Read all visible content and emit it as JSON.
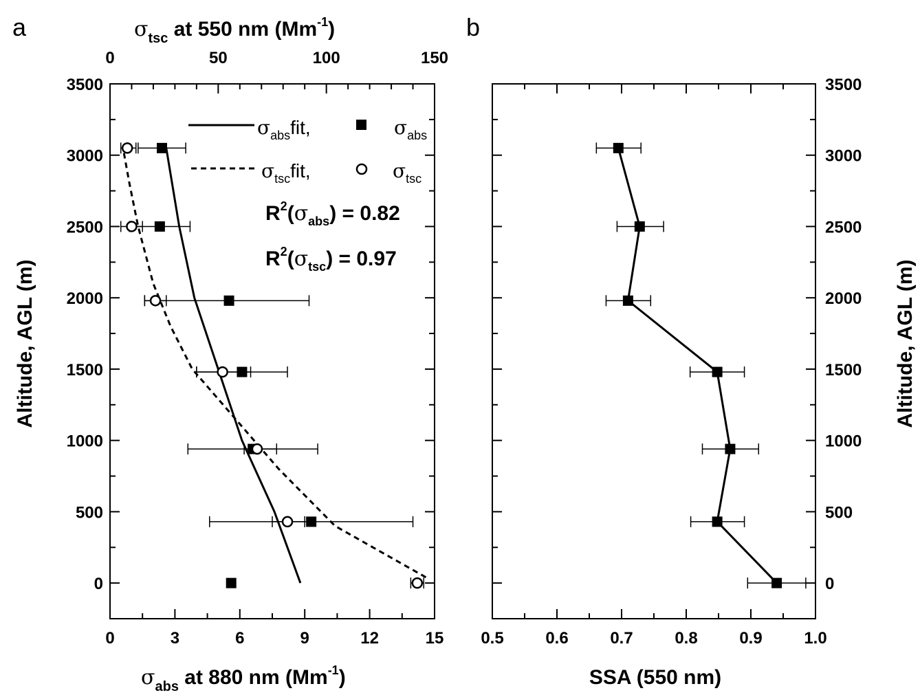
{
  "panels": {
    "a": {
      "letter": "a",
      "top_axis": {
        "sym": "σ",
        "sub": "tsc",
        "rest": " at 550 nm (Mm",
        "sup": "-1",
        "close": ")"
      },
      "bottom_axis": {
        "sym": "σ",
        "sub": "abs",
        "rest": " at 880 nm (Mm",
        "sup": "-1",
        "close": ")"
      },
      "ylabel": "Altitude, AGL (m)",
      "legend": {
        "abs_fit": {
          "sym": "σ",
          "sub": "abs",
          "txt": "fit,"
        },
        "abs_pts": {
          "sym": "σ",
          "sub": "abs"
        },
        "tsc_fit": {
          "sym": "σ",
          "sub": "tsc",
          "txt": "fit,"
        },
        "tsc_pts": {
          "sym": "σ",
          "sub": "tsc"
        }
      },
      "r2_abs": {
        "pre": "R",
        "sup": "2",
        "open": "(",
        "sym": "σ",
        "sub": "abs",
        "post": ") = 0.82"
      },
      "r2_tsc": {
        "pre": "R",
        "sup": "2",
        "open": "(",
        "sym": "σ",
        "sub": "tsc",
        "post": ") = 0.97"
      }
    },
    "b": {
      "letter": "b",
      "xlabel": "SSA (550 nm)",
      "ylabel": "Altitude, AGL (m)"
    }
  },
  "chart_data": [
    {
      "type": "scatter",
      "panel": "a",
      "xlabel": "σabs at 880 nm (Mm-1)",
      "x2label": "σtsc at 550 nm (Mm-1)",
      "ylabel": "Altitude, AGL (m)",
      "xlim": [
        0,
        15
      ],
      "x2lim": [
        0,
        150
      ],
      "ylim": [
        -250,
        3500
      ],
      "xticks": [
        "0",
        "3",
        "6",
        "9",
        "12",
        "15"
      ],
      "x2ticks": [
        "0",
        "50",
        "100",
        "150"
      ],
      "yticks": [
        "0",
        "500",
        "1000",
        "1500",
        "2000",
        "2500",
        "3000",
        "3500"
      ],
      "series": [
        {
          "name": "σabs",
          "marker": "filled-square",
          "points": [
            {
              "x": 5.6,
              "y": 0
            },
            {
              "x": 9.3,
              "y": 430,
              "xerr": [
                4.6,
                14.0
              ]
            },
            {
              "x": 6.6,
              "y": 940,
              "xerr": [
                3.6,
                9.6
              ]
            },
            {
              "x": 6.1,
              "y": 1480,
              "xerr": [
                4.0,
                8.2
              ]
            },
            {
              "x": 5.5,
              "y": 1980,
              "xerr": [
                1.6,
                9.2
              ]
            },
            {
              "x": 2.3,
              "y": 2500,
              "xerr": [
                0.9,
                3.7
              ]
            },
            {
              "x": 2.4,
              "y": 3050,
              "xerr": [
                1.3,
                3.5
              ]
            }
          ]
        },
        {
          "name": "σtsc",
          "marker": "open-circle",
          "points": [
            {
              "x": 142,
              "y": 0,
              "xerr": [
                139,
                145
              ]
            },
            {
              "x": 82,
              "y": 430,
              "xerr": [
                75,
                90
              ]
            },
            {
              "x": 68,
              "y": 940,
              "xerr": [
                62,
                77
              ]
            },
            {
              "x": 52,
              "y": 1480,
              "xerr": [
                40,
                65
              ]
            },
            {
              "x": 21,
              "y": 1980,
              "xerr": [
                16,
                26
              ]
            },
            {
              "x": 10,
              "y": 2500,
              "xerr": [
                5,
                15
              ]
            },
            {
              "x": 8,
              "y": 3050,
              "xerr": [
                5,
                12
              ]
            }
          ]
        },
        {
          "name": "σabs fit",
          "line": "solid",
          "points": [
            {
              "x": 8.8,
              "y": 0
            },
            {
              "x": 7.6,
              "y": 500
            },
            {
              "x": 6.1,
              "y": 1000
            },
            {
              "x": 5.0,
              "y": 1500
            },
            {
              "x": 3.9,
              "y": 2000
            },
            {
              "x": 3.2,
              "y": 2500
            },
            {
              "x": 2.6,
              "y": 3050
            }
          ]
        },
        {
          "name": "σtsc fit",
          "line": "dashed",
          "points": [
            {
              "x": 146,
              "y": 40
            },
            {
              "x": 104,
              "y": 400
            },
            {
              "x": 78,
              "y": 800
            },
            {
              "x": 58,
              "y": 1150
            },
            {
              "x": 38,
              "y": 1500
            },
            {
              "x": 28,
              "y": 1800
            },
            {
              "x": 20,
              "y": 2100
            },
            {
              "x": 13,
              "y": 2500
            },
            {
              "x": 9,
              "y": 2800
            },
            {
              "x": 6,
              "y": 3050
            }
          ]
        }
      ]
    },
    {
      "type": "line",
      "panel": "b",
      "xlabel": "SSA (550 nm)",
      "ylabel": "Altitude, AGL (m)",
      "xlim": [
        0.5,
        1.0
      ],
      "ylim": [
        -250,
        3500
      ],
      "xticks": [
        "0.5",
        "0.6",
        "0.7",
        "0.8",
        "0.9",
        "1.0"
      ],
      "yticks": [
        "0",
        "500",
        "1000",
        "1500",
        "2000",
        "2500",
        "3000",
        "3500"
      ],
      "series": [
        {
          "name": "SSA",
          "marker": "filled-square",
          "points": [
            {
              "x": 0.94,
              "y": 0,
              "xerr": [
                0.895,
                0.985
              ]
            },
            {
              "x": 0.848,
              "y": 430,
              "xerr": [
                0.807,
                0.89
              ]
            },
            {
              "x": 0.868,
              "y": 940,
              "xerr": [
                0.825,
                0.912
              ]
            },
            {
              "x": 0.848,
              "y": 1480,
              "xerr": [
                0.806,
                0.89
              ]
            },
            {
              "x": 0.71,
              "y": 1980,
              "xerr": [
                0.676,
                0.745
              ]
            },
            {
              "x": 0.728,
              "y": 2500,
              "xerr": [
                0.693,
                0.765
              ]
            },
            {
              "x": 0.695,
              "y": 3050,
              "xerr": [
                0.661,
                0.73
              ]
            }
          ]
        }
      ]
    }
  ]
}
